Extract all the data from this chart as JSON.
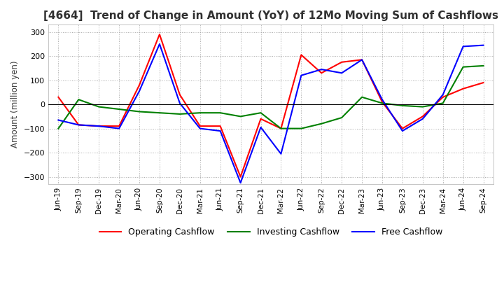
{
  "title": "[4664]  Trend of Change in Amount (YoY) of 12Mo Moving Sum of Cashflows",
  "ylabel": "Amount (million yen)",
  "ylim": [
    -330,
    330
  ],
  "yticks": [
    -300,
    -200,
    -100,
    0,
    100,
    200,
    300
  ],
  "x_labels": [
    "Jun-19",
    "Sep-19",
    "Dec-19",
    "Mar-20",
    "Jun-20",
    "Sep-20",
    "Dec-20",
    "Mar-21",
    "Jun-21",
    "Sep-21",
    "Dec-21",
    "Mar-22",
    "Jun-22",
    "Sep-22",
    "Dec-22",
    "Mar-23",
    "Jun-23",
    "Sep-23",
    "Dec-23",
    "Mar-24",
    "Jun-24",
    "Sep-24"
  ],
  "operating": [
    30,
    -85,
    -90,
    -90,
    80,
    290,
    40,
    -90,
    -90,
    -300,
    -60,
    -100,
    205,
    130,
    175,
    185,
    10,
    -100,
    -50,
    30,
    65,
    90
  ],
  "investing": [
    -100,
    20,
    -10,
    -20,
    -30,
    -35,
    -40,
    -35,
    -35,
    -50,
    -35,
    -100,
    -100,
    -80,
    -55,
    30,
    5,
    -5,
    -10,
    5,
    155,
    160
  ],
  "free": [
    -65,
    -85,
    -90,
    -100,
    55,
    250,
    5,
    -100,
    -110,
    -325,
    -95,
    -205,
    120,
    145,
    130,
    185,
    20,
    -110,
    -60,
    40,
    240,
    245
  ],
  "operating_color": "#ff0000",
  "investing_color": "#008000",
  "free_color": "#0000ff",
  "background_color": "#ffffff",
  "grid_color": "#aaaaaa",
  "title_color": "#303030",
  "title_fontsize": 11
}
